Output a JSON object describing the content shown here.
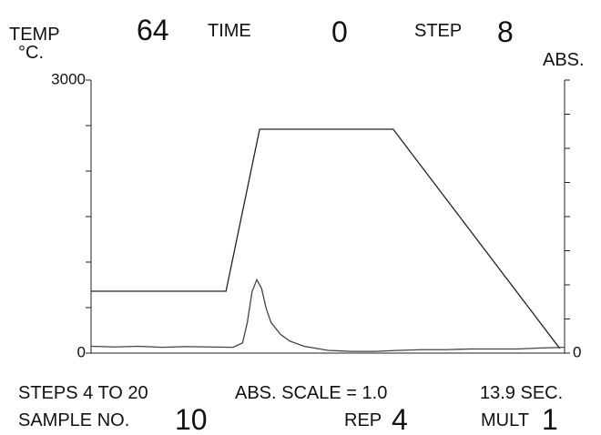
{
  "header": {
    "temp_label": "TEMP",
    "temp": 64,
    "time_label": "TIME",
    "time": 0,
    "step_label": "STEP",
    "step": 8
  },
  "chart_data": {
    "type": "line",
    "y_label": "°C.",
    "y2_label": "ABS.",
    "xlim": [
      0,
      100
    ],
    "ylim": [
      0,
      3000
    ],
    "y2lim": [
      0,
      8
    ],
    "yticks": [
      0,
      {
        "value": 500,
        "label": null
      },
      {
        "value": 1000,
        "label": null
      },
      {
        "value": 1500,
        "label": null
      },
      {
        "value": 2000,
        "label": null
      },
      {
        "value": 2500,
        "label": null
      },
      3000
    ],
    "y2ticks": [
      0,
      {
        "value": 1,
        "label": null
      },
      {
        "value": 2,
        "label": null
      },
      {
        "value": 3,
        "label": null
      },
      {
        "value": 4,
        "label": null
      },
      {
        "value": 5,
        "label": null
      },
      {
        "value": 6,
        "label": null
      },
      {
        "value": 7,
        "label": null
      },
      {
        "value": 8,
        "label": null
      }
    ],
    "series": [
      {
        "name": "TEMP",
        "color": "#222222",
        "x": [
          0,
          28.5,
          35.6,
          63.8,
          99
        ],
        "values": [
          680,
          680,
          2460,
          2460,
          50
        ]
      },
      {
        "name": "ABS.",
        "color": "#444444",
        "axis": "y2",
        "x": [
          0,
          5,
          10,
          15,
          20,
          25,
          30,
          32,
          33,
          34,
          35,
          36,
          37,
          38,
          40,
          42,
          45,
          50,
          55,
          60,
          65,
          70,
          75,
          80,
          85,
          90,
          95,
          100
        ],
        "values": [
          0.2,
          0.18,
          0.2,
          0.17,
          0.19,
          0.18,
          0.17,
          0.3,
          0.9,
          1.8,
          2.15,
          1.9,
          1.3,
          0.9,
          0.55,
          0.35,
          0.2,
          0.08,
          0.05,
          0.05,
          0.08,
          0.1,
          0.1,
          0.12,
          0.12,
          0.12,
          0.15,
          0.17
        ]
      }
    ]
  },
  "footer": {
    "range": "STEPS 4 TO 20",
    "abs_scale": "ABS. SCALE = 1.0",
    "duration": "13.9 SEC.",
    "sample_label": "SAMPLE NO.",
    "sample": 10,
    "rep_label": "REP",
    "rep": 4,
    "mult_label": "MULT",
    "mult": 1
  }
}
